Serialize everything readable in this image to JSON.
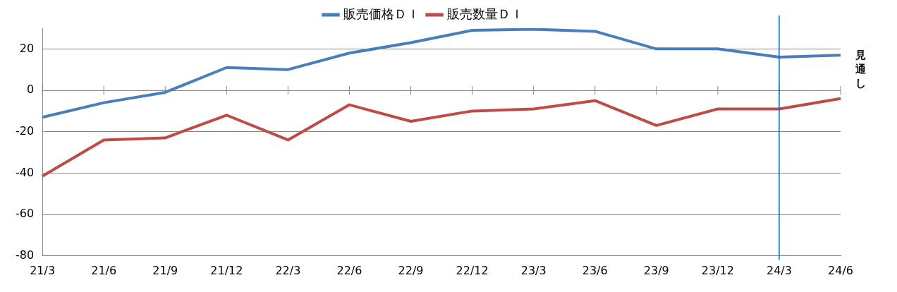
{
  "chart_data": {
    "type": "line",
    "categories": [
      "21/3",
      "21/6",
      "21/9",
      "21/12",
      "22/3",
      "22/6",
      "22/9",
      "22/12",
      "23/3",
      "23/6",
      "23/9",
      "23/12",
      "24/3",
      "24/6"
    ],
    "series": [
      {
        "name": "販売価格ＤＩ",
        "color": "#4a7ebb",
        "values": [
          -13,
          -6,
          -1,
          11,
          10,
          18,
          23,
          29,
          29.5,
          28.5,
          20,
          20,
          16,
          17
        ]
      },
      {
        "name": "販売数量ＤＩ",
        "color": "#be4b48",
        "values": [
          -41.5,
          -24,
          -23,
          -12,
          -24,
          -7,
          -15,
          -10,
          -9,
          -5,
          -17,
          -9,
          -9,
          -4
        ]
      }
    ],
    "ylim": [
      -80,
      30
    ],
    "yticks": [
      -80,
      -60,
      -40,
      -20,
      0,
      20
    ],
    "ref_lines": [
      {
        "axis": "x",
        "value": "24/3",
        "color": "#0070c0"
      }
    ],
    "annotations": [
      "見通し"
    ],
    "grid": "y",
    "legend": "top",
    "marker": "none",
    "line_style": "solid"
  }
}
